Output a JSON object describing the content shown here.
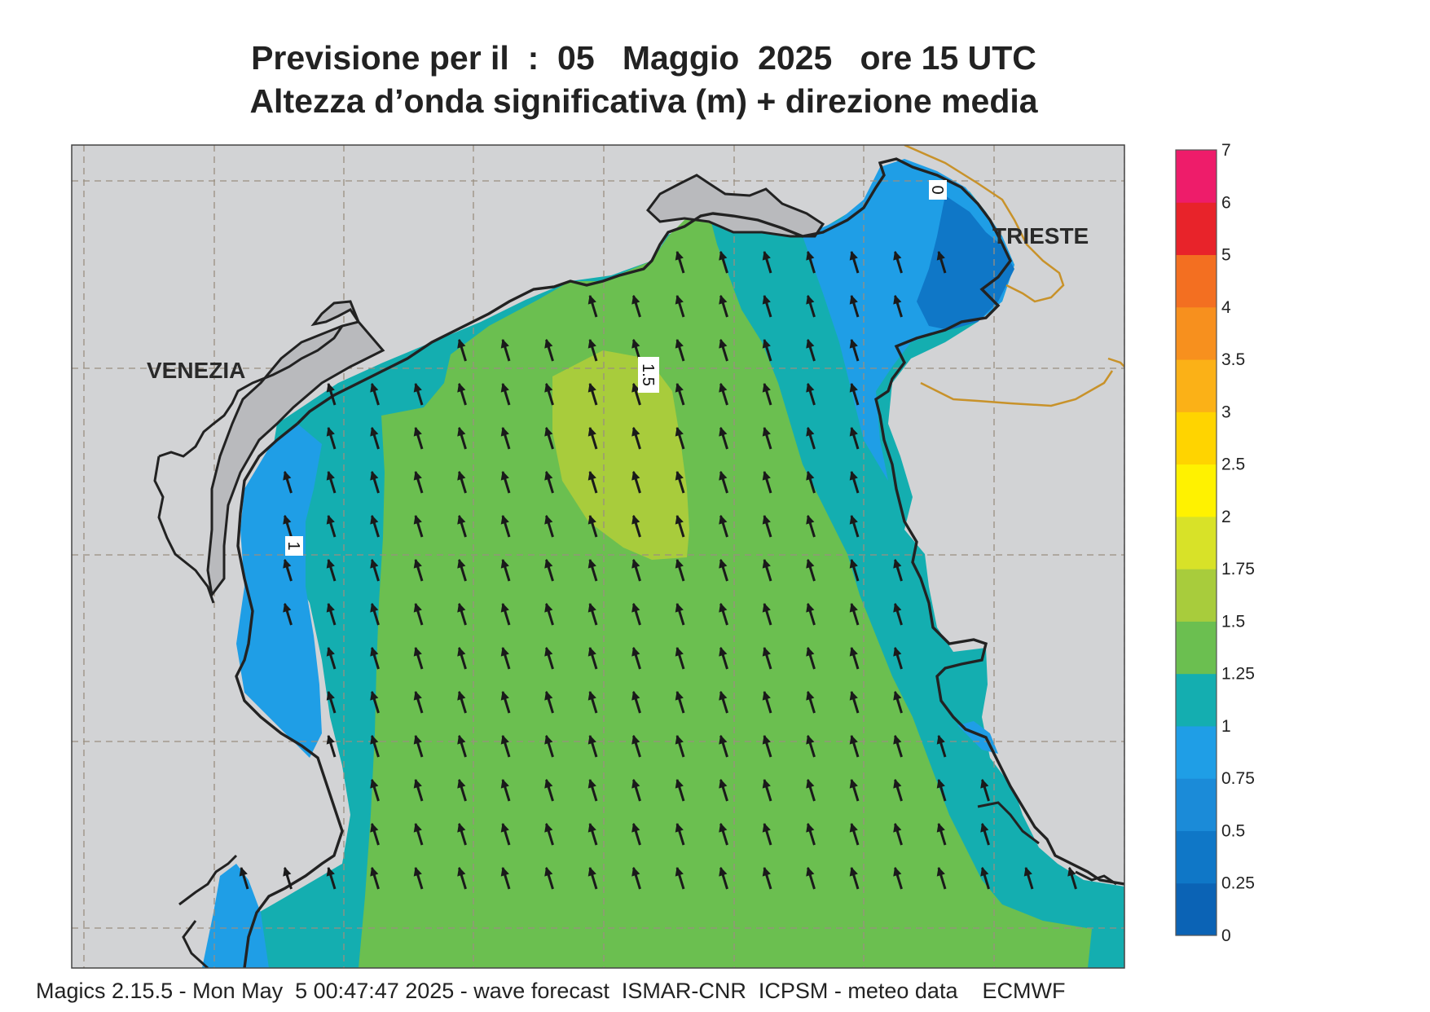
{
  "header": {
    "line1": "Previsione per il  :  05   Maggio  2025   ore 15 UTC",
    "line2": "Altezza d’onda significativa (m) + direzione media"
  },
  "colorbar": {
    "labels": [
      "0",
      "0.25",
      "0.5",
      "0.75",
      "1",
      "1.25",
      "1.5",
      "1.75",
      "2",
      "2.5",
      "3",
      "3.5",
      "4",
      "5",
      "6",
      "7"
    ],
    "colors": [
      "#0b63b5",
      "#0f77c7",
      "#1b8bd8",
      "#1f9ee6",
      "#14aeb0",
      "#6bbf50",
      "#a8cc3c",
      "#d8e228",
      "#fff200",
      "#ffd400",
      "#fbb117",
      "#f7901e",
      "#f36f21",
      "#e8232a",
      "#ee1c6a"
    ]
  },
  "map": {
    "places": [
      "VENEZIA",
      "TRIESTE"
    ],
    "contour_labels": [
      "1.5",
      "1",
      "0"
    ],
    "colors": {
      "land": "#d2d3d5",
      "coast": "#222222",
      "border": "#c8922a",
      "grid": "#9a8f80"
    }
  },
  "footer": {
    "text": "Magics 2.15.5 - Mon May  5 00:47:47 2025 - wave forecast  ISMAR-CNR  ICPSM - meteo data    ECMWF"
  }
}
